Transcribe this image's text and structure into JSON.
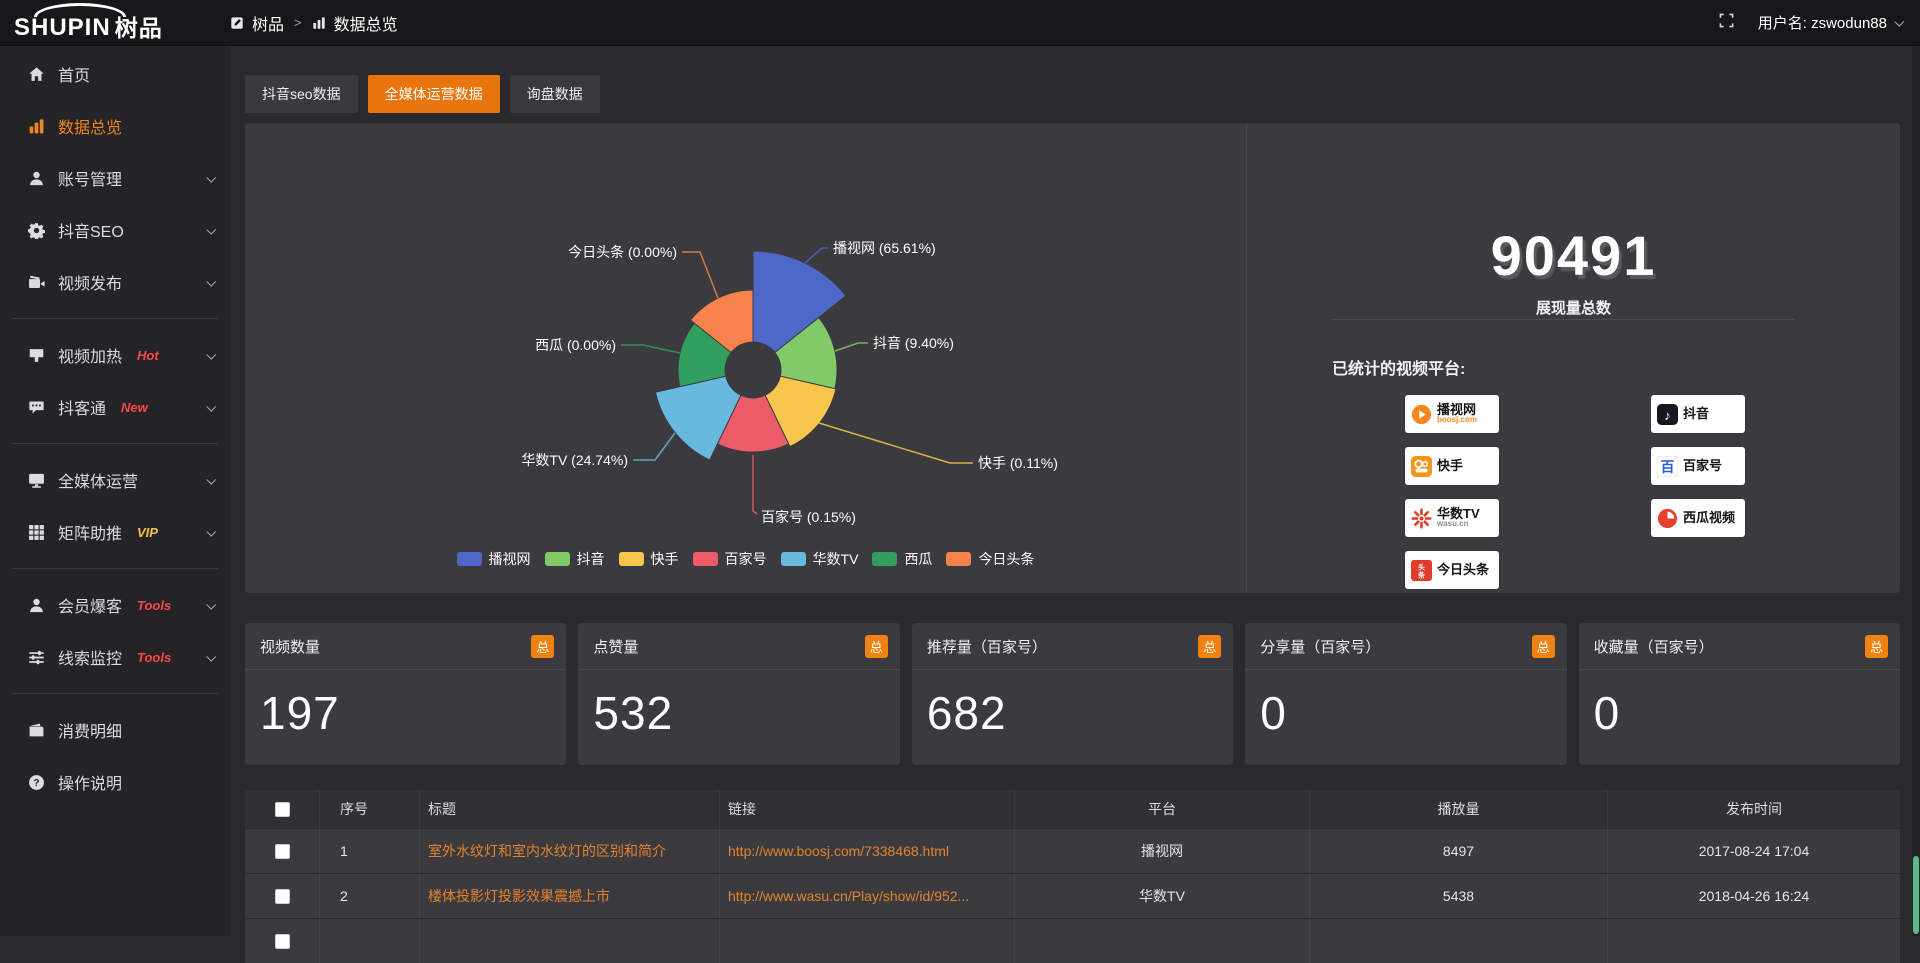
{
  "topbar": {
    "logo_main": "SHUPIN",
    "logo_cn": "树品",
    "breadcrumb": {
      "root": "树品",
      "separator": ">",
      "current": "数据总览"
    },
    "user_label": "用户名: zswodun88"
  },
  "sidebar": {
    "items": [
      {
        "key": "home",
        "label": "首页",
        "icon": "home"
      },
      {
        "key": "data-overview",
        "label": "数据总览",
        "icon": "chart",
        "active": true
      },
      {
        "key": "account-manage",
        "label": "账号管理",
        "icon": "user",
        "chevron": true
      },
      {
        "key": "douyin-seo",
        "label": "抖音SEO",
        "icon": "gear",
        "chevron": true
      },
      {
        "key": "video-publish",
        "label": "视频发布",
        "icon": "video",
        "chevron": true
      },
      {
        "divider": true
      },
      {
        "key": "video-heating",
        "label": "视频加热",
        "icon": "heat",
        "badge": "Hot",
        "badge_color": "#ff4646",
        "chevron": true
      },
      {
        "key": "douketong",
        "label": "抖客通",
        "icon": "chat",
        "badge": "New",
        "badge_color": "#ff4646",
        "chevron": true
      },
      {
        "divider": true
      },
      {
        "key": "media-operation",
        "label": "全媒体运营",
        "icon": "monitor",
        "chevron": true
      },
      {
        "key": "matrix-boost",
        "label": "矩阵助推",
        "icon": "grid",
        "badge": "VIP",
        "badge_color": "#f6c243",
        "chevron": true
      },
      {
        "divider": true
      },
      {
        "key": "member-burst",
        "label": "会员爆客",
        "icon": "person",
        "badge": "Tools",
        "badge_color": "#ff4646",
        "chevron": true
      },
      {
        "key": "clue-monitor",
        "label": "线索监控",
        "icon": "sliders",
        "badge": "Tools",
        "badge_color": "#ff4646",
        "chevron": true
      },
      {
        "divider": true
      },
      {
        "key": "consume-detail",
        "label": "消费明细",
        "icon": "wallet"
      },
      {
        "key": "operation-guide",
        "label": "操作说明",
        "icon": "question"
      }
    ]
  },
  "tabs": [
    {
      "label": "抖音seo数据",
      "active": false
    },
    {
      "label": "全媒体运营数据",
      "active": true
    },
    {
      "label": "询盘数据",
      "active": false
    }
  ],
  "chart_data": {
    "type": "pie",
    "style": "nightingale-rose-donut",
    "legend_position": "bottom",
    "series": [
      {
        "name": "播视网",
        "percent": 65.61,
        "label": "播视网 (65.61%)",
        "color": "#4e68c9"
      },
      {
        "name": "抖音",
        "percent": 9.4,
        "label": "抖音 (9.40%)",
        "color": "#82ca68"
      },
      {
        "name": "快手",
        "percent": 0.11,
        "label": "快手 (0.11%)",
        "color": "#f6c64d"
      },
      {
        "name": "百家号",
        "percent": 0.15,
        "label": "百家号 (0.15%)",
        "color": "#ed5a68"
      },
      {
        "name": "华数TV",
        "percent": 24.74,
        "label": "华数TV (24.74%)",
        "color": "#67b9dd"
      },
      {
        "name": "西瓜",
        "percent": 0.0,
        "label": "西瓜 (0.00%)",
        "color": "#31a05f"
      },
      {
        "name": "今日头条",
        "percent": 0.0,
        "label": "今日头条 (0.00%)",
        "color": "#f7824c"
      }
    ]
  },
  "right_panel": {
    "total_value": "90491",
    "total_label": "展现量总数",
    "platforms_label": "已统计的视频平台:",
    "columns": [
      [
        {
          "name": "播视网",
          "sub": "boosj.com",
          "sub_color": "#f5851f",
          "icon": "boosj"
        },
        {
          "name": "快手",
          "icon": "kuaishou"
        },
        {
          "name": "华数TV",
          "sub": "wasu.cn",
          "sub_color": "#8b8f94",
          "icon": "wasu"
        },
        {
          "name": "今日头条",
          "icon": "toutiao"
        }
      ],
      [
        {
          "name": "抖音",
          "icon": "douyin"
        },
        {
          "name": "百家号",
          "icon": "baijiahao"
        },
        {
          "name": "西瓜视频",
          "icon": "xigua"
        }
      ]
    ]
  },
  "stats": {
    "badge": "总",
    "cards": [
      {
        "title": "视频数量",
        "value": "197"
      },
      {
        "title": "点赞量",
        "value": "532"
      },
      {
        "title": "推荐量（百家号）",
        "value": "682"
      },
      {
        "title": "分享量（百家号）",
        "value": "0"
      },
      {
        "title": "收藏量（百家号）",
        "value": "0"
      }
    ]
  },
  "table": {
    "columns": [
      "序号",
      "标题",
      "链接",
      "平台",
      "播放量",
      "发布时间"
    ],
    "rows": [
      {
        "index": "1",
        "title": "室外水纹灯和室内水纹灯的区别和简介",
        "link": "http://www.boosj.com/7338468.html",
        "platform": "播视网",
        "plays": "8497",
        "published": "2017-08-24 17:04"
      },
      {
        "index": "2",
        "title": "楼体投影灯投影效果震撼上市",
        "link": "http://www.wasu.cn/Play/show/id/952...",
        "platform": "华数TV",
        "plays": "5438",
        "published": "2018-04-26 16:24"
      },
      {
        "index": "",
        "title": "",
        "link": "",
        "platform": "",
        "plays": "",
        "published": ""
      }
    ]
  }
}
